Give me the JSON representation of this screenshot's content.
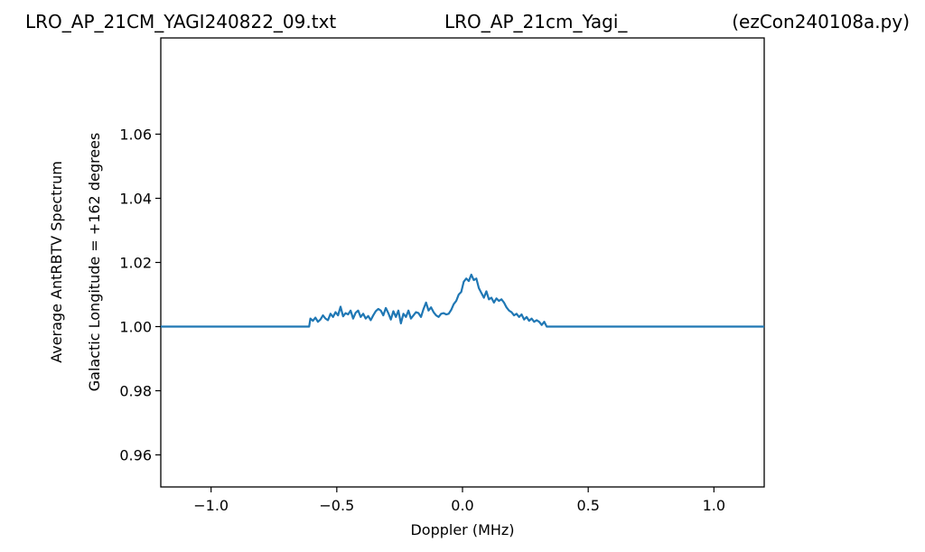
{
  "header": {
    "left": "LRO_AP_21CM_YAGI240822_09.txt",
    "center": "LRO_AP_21cm_Yagi_",
    "right": "(ezCon240108a.py)"
  },
  "chart_data": {
    "type": "line",
    "xlabel": "Doppler (MHz)",
    "ylabel_line1": "Average AntRBTV Spectrum",
    "ylabel_line2": "Galactic Longitude = +162 degrees",
    "xlim": [
      -1.2,
      1.2
    ],
    "ylim": [
      0.95,
      1.09
    ],
    "xticks": [
      -1.0,
      -0.5,
      0.0,
      0.5,
      1.0
    ],
    "xtick_labels": [
      "−1.0",
      "−0.5",
      "0.0",
      "0.5",
      "1.0"
    ],
    "yticks": [
      0.96,
      0.98,
      1.0,
      1.02,
      1.04,
      1.06
    ],
    "ytick_labels": [
      "0.96",
      "0.98",
      "1.00",
      "1.02",
      "1.04",
      "1.06"
    ],
    "grid": false,
    "color": "#1f77b4",
    "series": [
      {
        "x": [
          -1.2,
          -0.61,
          -0.605,
          -0.595,
          -0.585,
          -0.575,
          -0.565,
          -0.555,
          -0.545,
          -0.535,
          -0.525,
          -0.515,
          -0.505,
          -0.495,
          -0.485,
          -0.475,
          -0.465,
          -0.455,
          -0.445,
          -0.435,
          -0.425,
          -0.415,
          -0.405,
          -0.395,
          -0.385,
          -0.375,
          -0.365,
          -0.355,
          -0.345,
          -0.335,
          -0.325,
          -0.315,
          -0.305,
          -0.295,
          -0.285,
          -0.275,
          -0.265,
          -0.255,
          -0.245,
          -0.235,
          -0.225,
          -0.215,
          -0.205,
          -0.195,
          -0.185,
          -0.175,
          -0.165,
          -0.155,
          -0.145,
          -0.135,
          -0.125,
          -0.115,
          -0.105,
          -0.095,
          -0.085,
          -0.075,
          -0.065,
          -0.055,
          -0.045,
          -0.035,
          -0.025,
          -0.015,
          -0.005,
          0.005,
          0.015,
          0.025,
          0.035,
          0.045,
          0.055,
          0.065,
          0.075,
          0.085,
          0.095,
          0.105,
          0.115,
          0.125,
          0.135,
          0.145,
          0.155,
          0.165,
          0.175,
          0.185,
          0.195,
          0.205,
          0.215,
          0.225,
          0.235,
          0.245,
          0.255,
          0.265,
          0.275,
          0.285,
          0.295,
          0.305,
          0.315,
          0.325,
          0.335,
          0.345,
          0.355,
          0.365,
          0.375,
          0.385,
          0.395,
          1.2
        ],
        "y": [
          1.0,
          1.0,
          1.0025,
          1.0018,
          1.0028,
          1.0015,
          1.0022,
          1.0035,
          1.0025,
          1.002,
          1.004,
          1.003,
          1.0045,
          1.0035,
          1.0062,
          1.0032,
          1.0042,
          1.0038,
          1.005,
          1.0025,
          1.0043,
          1.005,
          1.003,
          1.004,
          1.0025,
          1.0033,
          1.002,
          1.0035,
          1.0048,
          1.0055,
          1.005,
          1.0035,
          1.0058,
          1.0042,
          1.0022,
          1.0048,
          1.003,
          1.005,
          1.001,
          1.004,
          1.003,
          1.005,
          1.0025,
          1.0035,
          1.0045,
          1.0042,
          1.003,
          1.0055,
          1.0075,
          1.005,
          1.006,
          1.0045,
          1.0035,
          1.003,
          1.004,
          1.0042,
          1.0038,
          1.004,
          1.0052,
          1.007,
          1.008,
          1.01,
          1.0108,
          1.014,
          1.015,
          1.0142,
          1.0162,
          1.0145,
          1.015,
          1.012,
          1.0105,
          1.009,
          1.011,
          1.0085,
          1.009,
          1.0075,
          1.0088,
          1.008,
          1.0085,
          1.0075,
          1.006,
          1.005,
          1.0045,
          1.0035,
          1.004,
          1.003,
          1.0038,
          1.0022,
          1.003,
          1.0018,
          1.0025,
          1.0015,
          1.002,
          1.0015,
          1.0005,
          1.0015,
          1.0,
          1.0,
          1.0,
          1.0,
          1.0,
          1.0,
          1.0,
          1.0
        ]
      }
    ]
  }
}
